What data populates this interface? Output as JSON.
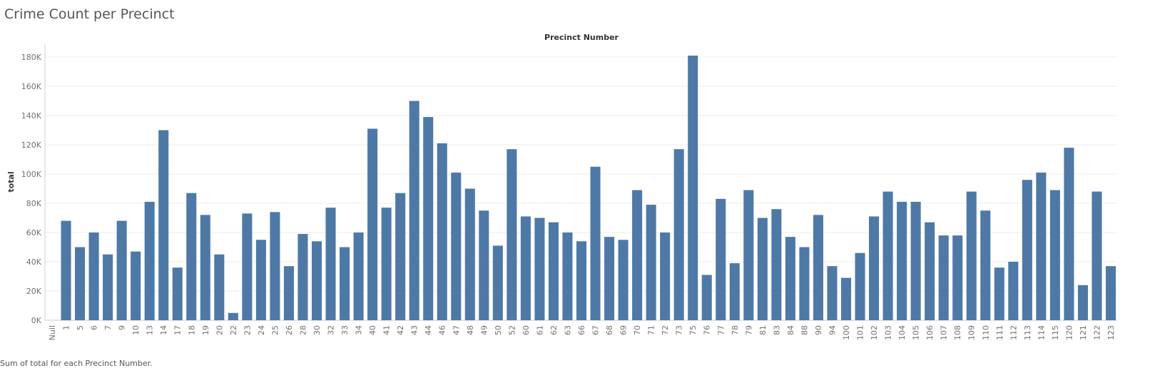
{
  "title": "Crime Count per Precinct",
  "caption": "Sum of total for each Precinct Number.",
  "chart_data": {
    "type": "bar",
    "title": "Crime Count per Precinct",
    "xlabel": "Precinct Number",
    "ylabel": "total",
    "ylim": [
      0,
      180000
    ],
    "yticks": [
      "0K",
      "20K",
      "40K",
      "60K",
      "80K",
      "100K",
      "120K",
      "140K",
      "160K",
      "180K"
    ],
    "grid": true,
    "bar_color": "#4e79a7",
    "categories": [
      "Null",
      "1",
      "5",
      "6",
      "7",
      "9",
      "10",
      "13",
      "14",
      "17",
      "18",
      "19",
      "20",
      "22",
      "23",
      "24",
      "25",
      "26",
      "28",
      "30",
      "32",
      "33",
      "34",
      "40",
      "41",
      "42",
      "43",
      "44",
      "46",
      "47",
      "48",
      "49",
      "50",
      "52",
      "60",
      "61",
      "62",
      "63",
      "66",
      "67",
      "68",
      "69",
      "70",
      "71",
      "72",
      "73",
      "75",
      "76",
      "77",
      "78",
      "79",
      "81",
      "83",
      "84",
      "88",
      "90",
      "94",
      "100",
      "101",
      "102",
      "103",
      "104",
      "105",
      "106",
      "107",
      "108",
      "109",
      "110",
      "111",
      "112",
      "113",
      "114",
      "115",
      "120",
      "121",
      "122",
      "123"
    ],
    "values": [
      0,
      68000,
      50000,
      60000,
      45000,
      68000,
      47000,
      81000,
      130000,
      36000,
      87000,
      72000,
      45000,
      5000,
      73000,
      55000,
      74000,
      37000,
      59000,
      54000,
      77000,
      50000,
      60000,
      131000,
      77000,
      87000,
      150000,
      139000,
      121000,
      101000,
      90000,
      75000,
      51000,
      117000,
      71000,
      70000,
      67000,
      60000,
      54000,
      105000,
      57000,
      55000,
      89000,
      79000,
      60000,
      117000,
      181000,
      31000,
      83000,
      39000,
      89000,
      70000,
      76000,
      57000,
      50000,
      72000,
      37000,
      29000,
      46000,
      71000,
      88000,
      81000,
      81000,
      67000,
      58000,
      58000,
      88000,
      75000,
      36000,
      40000,
      96000,
      101000,
      89000,
      118000,
      24000,
      88000,
      37000
    ]
  }
}
